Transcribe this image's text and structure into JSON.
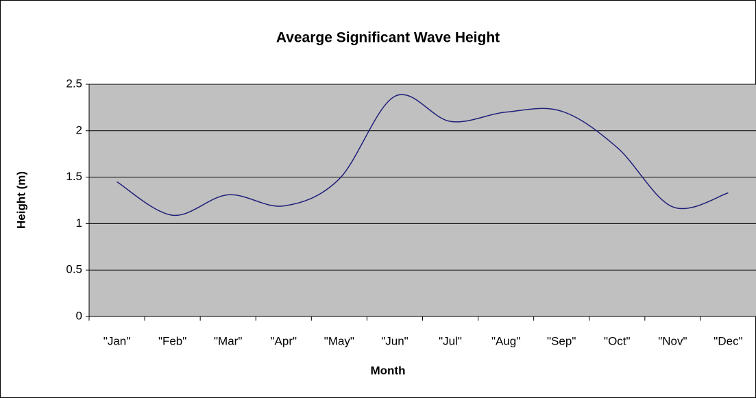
{
  "chart_data": {
    "type": "line",
    "title": "Avearge Significant Wave Height",
    "x_label": "Month",
    "y_label": "Height (m)",
    "categories": [
      "\"Jan\"",
      "\"Feb\"",
      "\"Mar\"",
      "\"Apr\"",
      "\"May\"",
      "\"Jun\"",
      "\"Jul\"",
      "\"Aug\"",
      "\"Sep\"",
      "\"Oct\"",
      "\"Nov\"",
      "\"Dec\""
    ],
    "values": [
      1.45,
      1.09,
      1.31,
      1.19,
      1.48,
      2.37,
      2.1,
      2.2,
      2.21,
      1.82,
      1.18,
      1.33
    ],
    "color": "#1f1f7a",
    "smooth": true,
    "ylim": [
      0,
      2.5
    ],
    "yticks": [
      0,
      0.5,
      1,
      1.5,
      2,
      2.5
    ],
    "grid": true
  }
}
